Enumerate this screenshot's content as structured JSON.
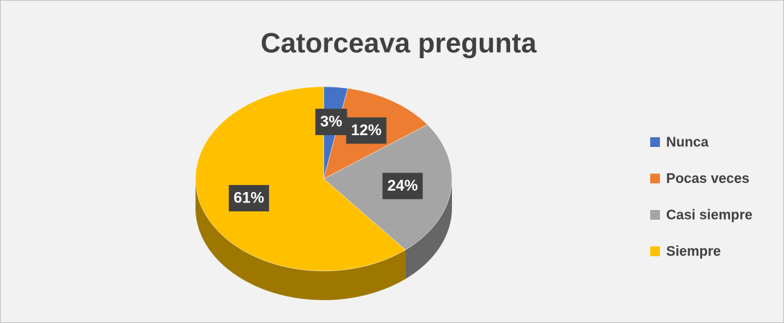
{
  "chart_data": {
    "type": "pie",
    "title": "Catorceava pregunta",
    "categories": [
      "Nunca",
      "Pocas veces",
      "Casi siempre",
      "Siempre"
    ],
    "values": [
      3,
      12,
      24,
      61
    ],
    "value_labels": [
      "3%",
      "12%",
      "24%",
      "61%"
    ],
    "colors": [
      "#4472c4",
      "#ed7d31",
      "#a5a5a5",
      "#ffc000"
    ],
    "legend": "right"
  }
}
